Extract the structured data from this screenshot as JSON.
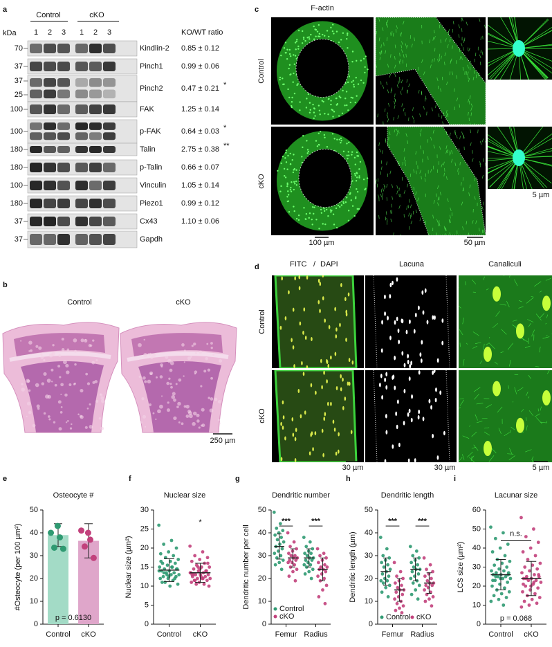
{
  "panel_labels": [
    "a",
    "b",
    "c",
    "d",
    "e",
    "f",
    "g",
    "h",
    "i"
  ],
  "blot": {
    "kda_label": "kDa",
    "groups": [
      "Control",
      "cKO"
    ],
    "lanes": [
      "1",
      "2",
      "3",
      "1",
      "2",
      "3"
    ],
    "ratio_header": "KO/WT ratio",
    "rows": [
      {
        "markers": [
          "70"
        ],
        "protein": "Kindlin-2",
        "ratio": "0.85 ± 0.12"
      },
      {
        "markers": [
          "37"
        ],
        "protein": "Pinch1",
        "ratio": "0.99 ± 0.06"
      },
      {
        "markers": [
          "37",
          "25"
        ],
        "protein": "Pinch2",
        "ratio": "0.47 ± 0.21",
        "sig": "*"
      },
      {
        "markers": [
          "100"
        ],
        "protein": "FAK",
        "ratio": "1.25 ± 0.14"
      },
      {
        "markers": [
          "100"
        ],
        "protein": "p-FAK",
        "ratio": "0.64 ± 0.03",
        "sig": "*"
      },
      {
        "markers": [
          "180"
        ],
        "protein": "Talin",
        "ratio": "2.75 ± 0.38",
        "sig": "**"
      },
      {
        "markers": [
          "180"
        ],
        "protein": "p-Talin",
        "ratio": "0.66 ± 0.07"
      },
      {
        "markers": [
          "100"
        ],
        "protein": "Vinculin",
        "ratio": "1.05 ± 0.14"
      },
      {
        "markers": [
          "180"
        ],
        "protein": "Piezo1",
        "ratio": "0.99 ± 0.12"
      },
      {
        "markers": [
          "37"
        ],
        "protein": "Cx43",
        "ratio": "1.10 ± 0.06"
      },
      {
        "markers": [
          "37"
        ],
        "protein": "Gapdh"
      }
    ]
  },
  "histology": {
    "labels": [
      "Control",
      "cKO"
    ],
    "scale": "250 µm"
  },
  "factin": {
    "title": "F-actin",
    "rows": [
      "Control",
      "cKO"
    ],
    "scales": [
      "100 µm",
      "50 µm",
      "5 µm"
    ]
  },
  "fitc": {
    "fitc": "FITC",
    "slash": "/",
    "dapi": "DAPI",
    "columns": [
      "Lacuna",
      "Canaliculi"
    ],
    "rows": [
      "Control",
      "cKO"
    ],
    "scales": [
      "30 µm",
      "30 µm",
      "5 µm"
    ]
  },
  "chart_data": [
    {
      "type": "bar",
      "title": "Osteocyte #",
      "y_label": "#Osteocyte (per 100 µm²)",
      "categories": [
        "Control",
        "cKO"
      ],
      "groups": [
        {
          "color": "#a3dbc6",
          "point_color": "#2f9a72",
          "values": [
            40,
            38,
            33.5,
            33,
            43
          ],
          "mean": 39,
          "sd": 5
        },
        {
          "color": "#dfa6ca",
          "point_color": "#c2417c",
          "values": [
            41,
            37,
            34,
            29,
            40
          ],
          "mean": 36.5,
          "sd": 7.5
        }
      ],
      "ylim": [
        0,
        50
      ],
      "yticks": [
        0,
        10,
        20,
        30,
        40,
        50
      ],
      "annotations": [
        "p = 0.6130"
      ]
    },
    {
      "type": "dot",
      "title": "Nuclear size",
      "y_label": "Nuclear size (µm²)",
      "categories": [
        "Control",
        "cKO"
      ],
      "groups": [
        {
          "color": "#2f9a72",
          "values": [
            26,
            22,
            21,
            20,
            19,
            18.5,
            18,
            17.5,
            17,
            16.5,
            16,
            16,
            15.5,
            15,
            15,
            14.5,
            14.5,
            14,
            14,
            13.5,
            13.5,
            13,
            13,
            12.5,
            12.5,
            12,
            12,
            11.5,
            11,
            10.5,
            10,
            11,
            12,
            13,
            14,
            15,
            13.5,
            14.5,
            12.5,
            16.5
          ],
          "mean": 14.2,
          "sd": 3
        },
        {
          "color": "#c2417c",
          "values": [
            20.5,
            19,
            18,
            17.5,
            17,
            16.5,
            16,
            15.5,
            15,
            15,
            14.5,
            14,
            14,
            13.5,
            13.5,
            13,
            13,
            13,
            12.5,
            12.5,
            12,
            12,
            12,
            11.5,
            11.5,
            11,
            11,
            10.5,
            10.5,
            10,
            12.5,
            13,
            14,
            15,
            13.5,
            12,
            11.5,
            16,
            14.5,
            13
          ],
          "mean": 13.5,
          "sd": 2.5
        }
      ],
      "ylim": [
        0,
        30
      ],
      "yticks": [
        0,
        5,
        10,
        15,
        20,
        25,
        30
      ],
      "annotations": [
        "*"
      ]
    },
    {
      "type": "dot",
      "title": "Dendritic number",
      "y_label": "Dendritic number per cell",
      "categories": [
        "Femur",
        "Radius"
      ],
      "legend": "vertical",
      "series": [
        {
          "name": "Control",
          "color": "#2f9a72",
          "groups": [
            {
              "values": [
                49,
                44,
                42,
                41,
                40,
                39,
                38,
                37,
                36,
                35,
                34,
                33,
                32,
                31,
                30,
                29,
                28,
                27,
                26,
                24
              ],
              "mean": 34,
              "sd": 5.5
            },
            {
              "values": [
                38,
                36,
                34,
                33,
                32,
                31,
                31,
                30,
                29,
                29,
                28,
                28,
                27,
                26,
                26,
                25,
                24,
                23,
                22,
                20
              ],
              "mean": 29,
              "sd": 4
            }
          ]
        },
        {
          "name": "cKO",
          "color": "#c2417c",
          "groups": [
            {
              "values": [
                40,
                36,
                34,
                33,
                32,
                31,
                30,
                30,
                29,
                29,
                28,
                28,
                27,
                27,
                26,
                25,
                24,
                23,
                21,
                19
              ],
              "mean": 29,
              "sd": 4
            },
            {
              "values": [
                33,
                31,
                30,
                29,
                28,
                27,
                26,
                25,
                25,
                24,
                24,
                23,
                22,
                21,
                20,
                19,
                17,
                15,
                12,
                9
              ],
              "mean": 24,
              "sd": 5
            }
          ]
        }
      ],
      "ylim": [
        0,
        50
      ],
      "yticks": [
        0,
        10,
        20,
        30,
        40,
        50
      ],
      "annotations": [
        "***",
        "***"
      ]
    },
    {
      "type": "dot",
      "title": "Dendritic length",
      "y_label": "Dendritic length (µm)",
      "categories": [
        "Femur",
        "Radius"
      ],
      "legend": "horizontal",
      "series": [
        {
          "name": "Control",
          "color": "#2f9a72",
          "groups": [
            {
              "values": [
                38,
                33,
                30,
                29,
                28,
                27,
                26,
                25,
                24,
                23,
                22,
                21,
                20,
                19,
                19,
                18,
                17,
                16,
                14,
                12
              ],
              "mean": 23,
              "sd": 6
            },
            {
              "values": [
                34,
                32,
                30,
                29,
                28,
                27,
                26,
                25,
                24,
                24,
                23,
                22,
                21,
                20,
                19,
                18,
                17,
                15,
                13,
                11
              ],
              "mean": 24,
              "sd": 5
            }
          ]
        },
        {
          "name": "cKO",
          "color": "#c2417c",
          "groups": [
            {
              "values": [
                27,
                23,
                21,
                20,
                19,
                18,
                17,
                16,
                15,
                15,
                14,
                13,
                12,
                11,
                10,
                9,
                8,
                7,
                6,
                5
              ],
              "mean": 15,
              "sd": 5
            },
            {
              "values": [
                29,
                26,
                24,
                23,
                22,
                21,
                20,
                19,
                18,
                18,
                17,
                17,
                16,
                15,
                14,
                13,
                12,
                11,
                10,
                8
              ],
              "mean": 18,
              "sd": 4.5
            }
          ]
        }
      ],
      "ylim": [
        0,
        50
      ],
      "yticks": [
        0,
        10,
        20,
        30,
        40,
        50
      ],
      "annotations": [
        "***",
        "***"
      ]
    },
    {
      "type": "dot",
      "title": "Lacunar size",
      "y_label": "LCS size (µm²)",
      "categories": [
        "Control",
        "cKO"
      ],
      "groups": [
        {
          "color": "#2f9a72",
          "values": [
            51,
            48,
            45,
            42,
            40,
            38,
            36,
            34,
            33,
            32,
            31,
            30,
            29,
            28,
            28,
            27,
            27,
            26,
            26,
            25,
            25,
            24,
            24,
            23,
            22,
            21,
            20,
            19,
            18,
            17,
            16,
            15,
            14,
            13,
            12,
            10,
            25,
            26,
            24,
            23
          ],
          "mean": 26,
          "sd": 8
        },
        {
          "color": "#c2417c",
          "values": [
            56,
            50,
            46,
            43,
            40,
            38,
            36,
            34,
            32,
            31,
            30,
            29,
            28,
            27,
            26,
            25,
            25,
            24,
            24,
            23,
            23,
            22,
            21,
            20,
            19,
            18,
            17,
            16,
            15,
            14,
            13,
            12,
            11,
            10,
            9,
            22,
            24,
            26,
            20,
            21
          ],
          "mean": 24,
          "sd": 9
        }
      ],
      "ylim": [
        0,
        60
      ],
      "yticks": [
        0,
        10,
        20,
        30,
        40,
        50,
        60
      ],
      "annotations": [
        "n.s.",
        "p = 0.068"
      ]
    }
  ]
}
